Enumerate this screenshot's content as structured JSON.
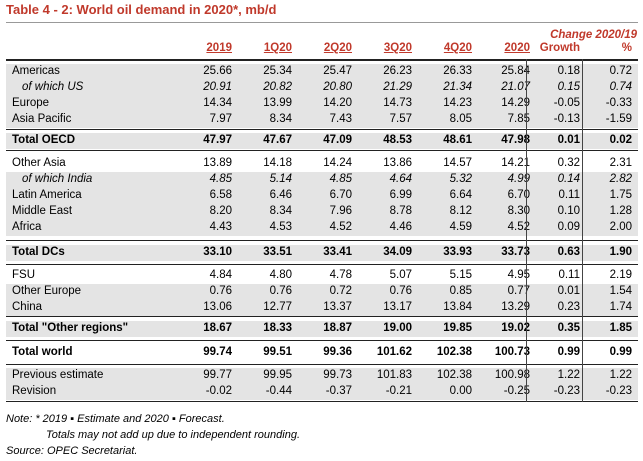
{
  "title": "Table 4 - 2: World oil demand in 2020*, mb/d",
  "change_title": "Change 2020/19",
  "columns": [
    "2019",
    "1Q20",
    "2Q20",
    "3Q20",
    "4Q20",
    "2020",
    "Growth",
    "%"
  ],
  "rows": [
    {
      "label": "Americas",
      "values": [
        "25.66",
        "25.34",
        "25.47",
        "26.23",
        "26.33",
        "25.84",
        "0.18",
        "0.72"
      ]
    },
    {
      "label": "of which US",
      "values": [
        "20.91",
        "20.82",
        "20.80",
        "21.29",
        "21.34",
        "21.07",
        "0.15",
        "0.74"
      ]
    },
    {
      "label": "Europe",
      "values": [
        "14.34",
        "13.99",
        "14.20",
        "14.73",
        "14.23",
        "14.29",
        "-0.05",
        "-0.33"
      ]
    },
    {
      "label": "Asia Pacific",
      "values": [
        "7.97",
        "8.34",
        "7.43",
        "7.57",
        "8.05",
        "7.85",
        "-0.13",
        "-1.59"
      ]
    },
    {
      "label": "Total OECD",
      "values": [
        "47.97",
        "47.67",
        "47.09",
        "48.53",
        "48.61",
        "47.98",
        "0.01",
        "0.02"
      ]
    },
    {
      "label": "Other Asia",
      "values": [
        "13.89",
        "14.18",
        "14.24",
        "13.86",
        "14.57",
        "14.21",
        "0.32",
        "2.31"
      ]
    },
    {
      "label": "of which India",
      "values": [
        "4.85",
        "5.14",
        "4.85",
        "4.64",
        "5.32",
        "4.99",
        "0.14",
        "2.82"
      ]
    },
    {
      "label": "Latin America",
      "values": [
        "6.58",
        "6.46",
        "6.70",
        "6.99",
        "6.64",
        "6.70",
        "0.11",
        "1.75"
      ]
    },
    {
      "label": "Middle East",
      "values": [
        "8.20",
        "8.34",
        "7.96",
        "8.78",
        "8.12",
        "8.30",
        "0.10",
        "1.28"
      ]
    },
    {
      "label": "Africa",
      "values": [
        "4.43",
        "4.53",
        "4.52",
        "4.46",
        "4.59",
        "4.52",
        "0.09",
        "2.00"
      ]
    },
    {
      "label": "Total DCs",
      "values": [
        "33.10",
        "33.51",
        "33.41",
        "34.09",
        "33.93",
        "33.73",
        "0.63",
        "1.90"
      ]
    },
    {
      "label": "FSU",
      "values": [
        "4.84",
        "4.80",
        "4.78",
        "5.07",
        "5.15",
        "4.95",
        "0.11",
        "2.19"
      ]
    },
    {
      "label": "Other Europe",
      "values": [
        "0.76",
        "0.76",
        "0.72",
        "0.76",
        "0.85",
        "0.77",
        "0.01",
        "1.54"
      ]
    },
    {
      "label": "China",
      "values": [
        "13.06",
        "12.77",
        "13.37",
        "13.17",
        "13.84",
        "13.29",
        "0.23",
        "1.74"
      ]
    },
    {
      "label": "Total \"Other regions\"",
      "values": [
        "18.67",
        "18.33",
        "18.87",
        "19.00",
        "19.85",
        "19.02",
        "0.35",
        "1.85"
      ]
    },
    {
      "label": "Total world",
      "values": [
        "99.74",
        "99.51",
        "99.36",
        "101.62",
        "102.38",
        "100.73",
        "0.99",
        "0.99"
      ]
    },
    {
      "label": "Previous estimate",
      "values": [
        "99.77",
        "99.95",
        "99.73",
        "101.83",
        "102.38",
        "100.98",
        "1.22",
        "1.22"
      ]
    },
    {
      "label": "Revision",
      "values": [
        "-0.02",
        "-0.44",
        "-0.37",
        "-0.21",
        "0.00",
        "-0.25",
        "-0.23",
        "-0.23"
      ]
    }
  ],
  "notes": {
    "line1": "Note: * 2019 ▪ Estimate and 2020 ▪ Forecast.",
    "line2": "Totals may not add up due to independent rounding.",
    "line3": "Source: OPEC Secretariat."
  },
  "colors": {
    "accent": "#c0392b",
    "shade": "#e4e4e4"
  }
}
